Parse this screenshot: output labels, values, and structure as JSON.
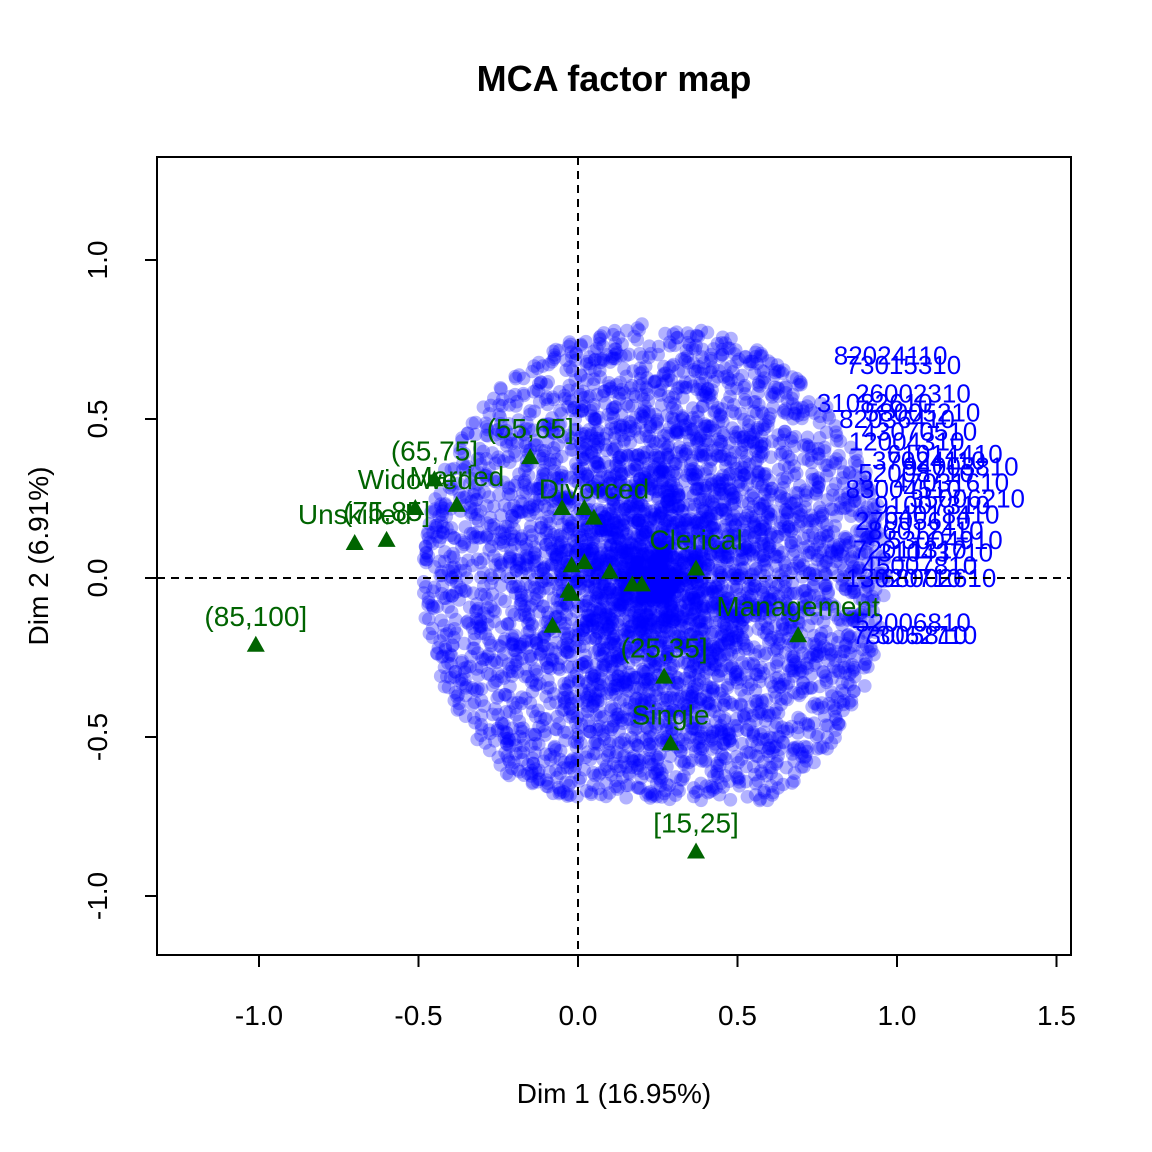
{
  "chart_data": {
    "type": "scatter",
    "title": "MCA factor map",
    "xlabel": "Dim 1 (16.95%)",
    "ylabel": "Dim 2 (6.91%)",
    "xlim": [
      -1.3,
      1.55
    ],
    "ylim": [
      -1.18,
      1.3
    ],
    "xticks": [
      -1.0,
      -0.5,
      0.0,
      0.5,
      1.0,
      1.5
    ],
    "xtick_labels": [
      "-1.0",
      "-0.5",
      "0.0",
      "0.5",
      "1.0",
      "1.5"
    ],
    "yticks": [
      -1.0,
      -0.5,
      0.0,
      0.5,
      1.0
    ],
    "ytick_labels": [
      "-1.0",
      "-0.5",
      "0.0",
      "0.5",
      "1.0"
    ],
    "reference_lines": {
      "x": 0,
      "y": 0,
      "style": "dashed"
    },
    "grid": false,
    "colors": {
      "individuals": "#0000ff",
      "categories": "#006400",
      "axes": "#000000",
      "background": "#ffffff"
    },
    "individuals_cloud": {
      "count": 5200,
      "center": [
        0.24,
        0.0
      ],
      "semi_axes": [
        0.73,
        0.8
      ],
      "clip_y": [
        -0.7,
        0.88
      ],
      "opacity": 0.3
    },
    "categories": [
      {
        "label": "[15,25]",
        "x": 0.37,
        "y": -0.86
      },
      {
        "label": "(85,100]",
        "x": -1.01,
        "y": -0.21
      },
      {
        "label": "Single",
        "x": 0.29,
        "y": -0.52
      },
      {
        "label": "(25,35]",
        "x": 0.27,
        "y": -0.31
      },
      {
        "label": "Management",
        "x": 0.69,
        "y": -0.18
      },
      {
        "label": "(55,65]",
        "x": -0.15,
        "y": 0.38
      },
      {
        "label": "(65,75]",
        "x": -0.45,
        "y": 0.31
      },
      {
        "label": "Married",
        "x": -0.38,
        "y": 0.23
      },
      {
        "label": "Widowed",
        "x": -0.51,
        "y": 0.22
      },
      {
        "label": "Unskilled",
        "x": -0.7,
        "y": 0.11
      },
      {
        "label": "(75,85]",
        "x": -0.6,
        "y": 0.12
      },
      {
        "label": "Divorced",
        "x": 0.05,
        "y": 0.19
      },
      {
        "label": "",
        "x": -0.05,
        "y": 0.22
      },
      {
        "label": "",
        "x": 0.02,
        "y": 0.22
      },
      {
        "label": "Clerical",
        "x": 0.37,
        "y": 0.03
      },
      {
        "label": "",
        "x": -0.02,
        "y": 0.04
      },
      {
        "label": "",
        "x": 0.02,
        "y": 0.05
      },
      {
        "label": "",
        "x": 0.1,
        "y": 0.02
      },
      {
        "label": "",
        "x": 0.17,
        "y": -0.02
      },
      {
        "label": "",
        "x": 0.2,
        "y": -0.02
      },
      {
        "label": "",
        "x": -0.03,
        "y": -0.04
      },
      {
        "label": "",
        "x": -0.02,
        "y": -0.05
      },
      {
        "label": "",
        "x": -0.08,
        "y": -0.15
      }
    ],
    "individual_labels": [
      {
        "label": "82024110",
        "x": 0.98,
        "y": 0.7
      },
      {
        "label": "73015310",
        "x": 1.02,
        "y": 0.67
      },
      {
        "label": "26002310",
        "x": 1.05,
        "y": 0.58
      },
      {
        "label": "31082610",
        "x": 0.93,
        "y": 0.55
      },
      {
        "label": "58005210",
        "x": 1.08,
        "y": 0.52
      },
      {
        "label": "82036410",
        "x": 1.0,
        "y": 0.5
      },
      {
        "label": "43070510",
        "x": 1.07,
        "y": 0.46
      },
      {
        "label": "12004310",
        "x": 1.03,
        "y": 0.43
      },
      {
        "label": "61014410",
        "x": 1.15,
        "y": 0.39
      },
      {
        "label": "37024110",
        "x": 1.1,
        "y": 0.37
      },
      {
        "label": "94003810",
        "x": 1.2,
        "y": 0.35
      },
      {
        "label": "52008710",
        "x": 1.06,
        "y": 0.33
      },
      {
        "label": "47031610",
        "x": 1.17,
        "y": 0.3
      },
      {
        "label": "83004510",
        "x": 1.02,
        "y": 0.28
      },
      {
        "label": "35006210",
        "x": 1.22,
        "y": 0.25
      },
      {
        "label": "91007310",
        "x": 1.11,
        "y": 0.23
      },
      {
        "label": "64018410",
        "x": 1.14,
        "y": 0.2
      },
      {
        "label": "27005610",
        "x": 1.05,
        "y": 0.18
      },
      {
        "label": "86012410",
        "x": 1.09,
        "y": 0.15
      },
      {
        "label": "53004910",
        "x": 1.15,
        "y": 0.12
      },
      {
        "label": "72011310",
        "x": 1.04,
        "y": 0.09
      },
      {
        "label": "31043710",
        "x": 1.12,
        "y": 0.08
      },
      {
        "label": "45007810",
        "x": 1.07,
        "y": 0.04
      },
      {
        "label": "68002610",
        "x": 1.13,
        "y": 0.0
      },
      {
        "label": "13020710",
        "x": 1.02,
        "y": 0.0
      },
      {
        "label": "52006810",
        "x": 1.05,
        "y": -0.14
      },
      {
        "label": "73005810",
        "x": 1.04,
        "y": -0.18
      },
      {
        "label": "73062710",
        "x": 1.07,
        "y": -0.18
      }
    ]
  }
}
